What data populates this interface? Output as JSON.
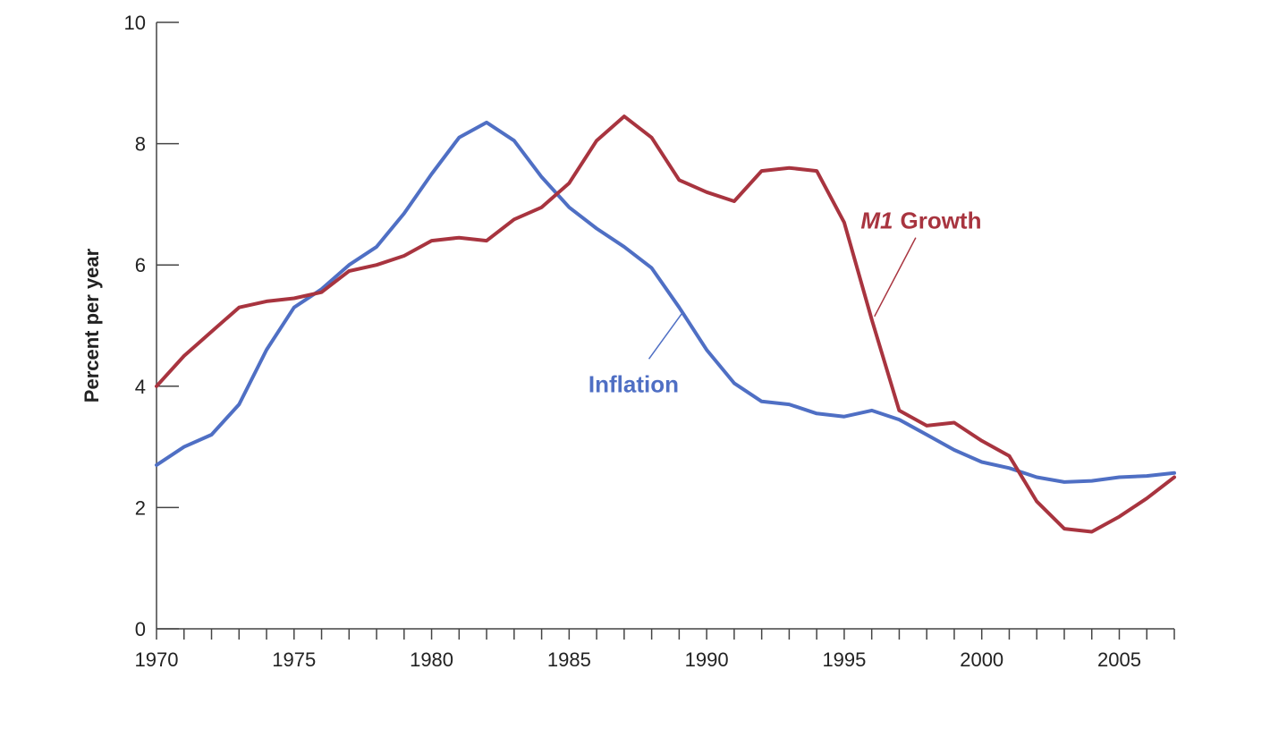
{
  "chart_data": {
    "type": "line",
    "title": "",
    "xlabel": "",
    "ylabel": "Percent per year",
    "xlim": [
      1970,
      2007
    ],
    "ylim": [
      0,
      10
    ],
    "x_ticks": [
      1970,
      1975,
      1980,
      1985,
      1990,
      1995,
      2000,
      2005
    ],
    "x_minor_step": 1,
    "y_ticks": [
      0,
      2,
      4,
      6,
      8,
      10
    ],
    "grid": false,
    "legend": "none",
    "series": [
      {
        "name": "Inflation",
        "color": "#4f6fc4",
        "x": [
          1970,
          1971,
          1972,
          1973,
          1974,
          1975,
          1976,
          1977,
          1978,
          1979,
          1980,
          1981,
          1982,
          1983,
          1984,
          1985,
          1986,
          1987,
          1988,
          1989,
          1990,
          1991,
          1992,
          1993,
          1994,
          1995,
          1996,
          1997,
          1998,
          1999,
          2000,
          2001,
          2002,
          2003,
          2004,
          2005,
          2006,
          2007
        ],
        "values": [
          2.7,
          3.0,
          3.2,
          3.7,
          4.6,
          5.3,
          5.6,
          6.0,
          6.3,
          6.85,
          7.5,
          8.1,
          8.35,
          8.05,
          7.45,
          6.95,
          6.6,
          6.3,
          5.95,
          5.3,
          4.6,
          4.05,
          3.75,
          3.7,
          3.55,
          3.5,
          3.6,
          3.45,
          3.2,
          2.95,
          2.75,
          2.65,
          2.5,
          2.42,
          2.44,
          2.5,
          2.52,
          2.57
        ]
      },
      {
        "name": "M1 Growth",
        "name_italic": "M1",
        "name_rest": "Growth",
        "color": "#a8343f",
        "x": [
          1970,
          1971,
          1972,
          1973,
          1974,
          1975,
          1976,
          1977,
          1978,
          1979,
          1980,
          1981,
          1982,
          1983,
          1984,
          1985,
          1986,
          1987,
          1988,
          1989,
          1990,
          1991,
          1992,
          1993,
          1994,
          1995,
          1996,
          1997,
          1998,
          1999,
          2000,
          2001,
          2002,
          2003,
          2004,
          2005,
          2006,
          2007
        ],
        "values": [
          4.0,
          4.5,
          4.9,
          5.3,
          5.4,
          5.45,
          5.55,
          5.9,
          6.0,
          6.15,
          6.4,
          6.45,
          6.4,
          6.75,
          6.95,
          7.35,
          8.05,
          8.45,
          8.1,
          7.4,
          7.2,
          7.05,
          7.55,
          7.6,
          7.55,
          6.7,
          5.1,
          3.6,
          3.35,
          3.4,
          3.1,
          2.85,
          2.1,
          1.65,
          1.6,
          1.85,
          2.15,
          2.5
        ]
      }
    ]
  }
}
